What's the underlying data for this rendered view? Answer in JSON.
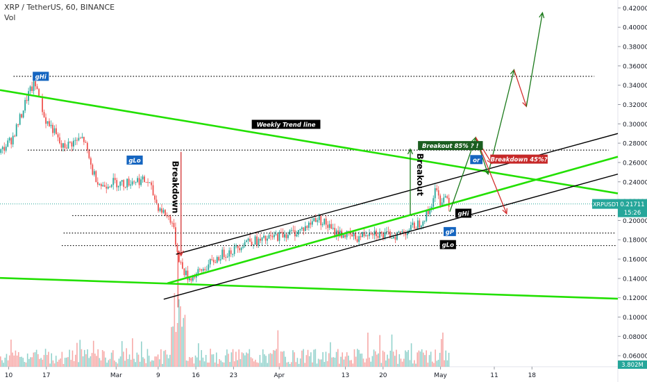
{
  "header": {
    "title": "XRP / TetherUS, 60, BINANCE",
    "volume_label": "Vol"
  },
  "chart_data": {
    "type": "candlestick",
    "symbol": "XRPUSDT",
    "ylim": [
      0.0486,
      0.4282
    ],
    "xlim": [
      0,
      1
    ],
    "x_tick_labels": [
      {
        "label": "10",
        "t": 0.014
      },
      {
        "label": "17",
        "t": 0.075
      },
      {
        "label": "Mar",
        "t": 0.188
      },
      {
        "label": "9",
        "t": 0.256
      },
      {
        "label": "16",
        "t": 0.317
      },
      {
        "label": "23",
        "t": 0.378
      },
      {
        "label": "Apr",
        "t": 0.452
      },
      {
        "label": "13",
        "t": 0.559
      },
      {
        "label": "20",
        "t": 0.62
      },
      {
        "label": "May",
        "t": 0.713
      },
      {
        "label": "11",
        "t": 0.8
      },
      {
        "label": "18",
        "t": 0.861
      }
    ],
    "y_ticks": [
      0.06,
      0.08,
      0.1,
      0.12,
      0.14,
      0.16,
      0.18,
      0.2,
      0.22,
      0.24,
      0.26,
      0.28,
      0.3,
      0.32,
      0.34,
      0.36,
      0.38,
      0.4,
      0.42
    ],
    "y_tick_labels": [
      "0.06000",
      "0.08000",
      "0.10000",
      "0.12000",
      "0.14000",
      "0.16000",
      "0.18000",
      "0.20000",
      "0.22000",
      "0.24000",
      "0.26000",
      "0.28000",
      "0.30000",
      "0.32000",
      "0.34000",
      "0.36000",
      "0.38000",
      "0.40000",
      "0.42000"
    ],
    "price_path": [
      [
        0.0,
        0.27
      ],
      [
        0.02,
        0.285
      ],
      [
        0.035,
        0.31
      ],
      [
        0.045,
        0.33
      ],
      [
        0.055,
        0.34
      ],
      [
        0.062,
        0.335
      ],
      [
        0.072,
        0.305
      ],
      [
        0.085,
        0.295
      ],
      [
        0.1,
        0.275
      ],
      [
        0.115,
        0.28
      ],
      [
        0.135,
        0.285
      ],
      [
        0.15,
        0.25
      ],
      [
        0.165,
        0.235
      ],
      [
        0.18,
        0.24
      ],
      [
        0.2,
        0.238
      ],
      [
        0.22,
        0.242
      ],
      [
        0.24,
        0.24
      ],
      [
        0.255,
        0.215
      ],
      [
        0.27,
        0.205
      ],
      [
        0.278,
        0.2
      ],
      [
        0.288,
        0.165
      ],
      [
        0.295,
        0.15
      ],
      [
        0.305,
        0.14
      ],
      [
        0.32,
        0.145
      ],
      [
        0.34,
        0.155
      ],
      [
        0.36,
        0.165
      ],
      [
        0.38,
        0.17
      ],
      [
        0.4,
        0.18
      ],
      [
        0.42,
        0.178
      ],
      [
        0.44,
        0.182
      ],
      [
        0.46,
        0.186
      ],
      [
        0.48,
        0.188
      ],
      [
        0.5,
        0.195
      ],
      [
        0.51,
        0.203
      ],
      [
        0.525,
        0.198
      ],
      [
        0.54,
        0.188
      ],
      [
        0.56,
        0.185
      ],
      [
        0.58,
        0.182
      ],
      [
        0.6,
        0.19
      ],
      [
        0.62,
        0.184
      ],
      [
        0.64,
        0.185
      ],
      [
        0.66,
        0.19
      ],
      [
        0.68,
        0.198
      ],
      [
        0.695,
        0.21
      ],
      [
        0.705,
        0.232
      ],
      [
        0.712,
        0.22
      ],
      [
        0.722,
        0.226
      ],
      [
        0.728,
        0.217
      ]
    ],
    "candle_count": 260,
    "volume_max": 3.802,
    "last_price": {
      "label": "XRPUSDT",
      "value": "0.21711",
      "countdown": "15:26",
      "price": 0.21711
    },
    "volume_badge": "3.802M",
    "colors": {
      "up": "#26a69a",
      "down": "#ef5350",
      "trend": "#22e000",
      "channel": "#000000"
    },
    "horizontal_levels": [
      {
        "price": 0.3492,
        "t0": 0.022,
        "t1": 0.962
      },
      {
        "price": 0.2728,
        "t0": 0.045,
        "t1": 0.985
      },
      {
        "price": 0.205,
        "t0": 0.117,
        "t1": 0.997
      },
      {
        "price": 0.187,
        "t0": 0.103,
        "t1": 0.997
      },
      {
        "price": 0.174,
        "t0": 0.1,
        "t1": 0.997
      }
    ],
    "trend_lines": [
      {
        "name": "weekly_upper",
        "t0": 0.0,
        "p0": 0.335,
        "t1": 1.0,
        "p1": 0.228
      },
      {
        "name": "lower_green",
        "t0": 0.0,
        "p0": 0.1405,
        "t1": 1.0,
        "p1": 0.119
      },
      {
        "name": "channel_mid",
        "t0": 0.271,
        "p0": 0.135,
        "t1": 1.0,
        "p1": 0.266
      },
      {
        "name": "channel_top",
        "t0": 0.285,
        "p0": 0.165,
        "t1": 1.0,
        "p1": 0.29
      },
      {
        "name": "channel_bottom",
        "t0": 0.265,
        "p0": 0.1185,
        "t1": 1.0,
        "p1": 0.248
      }
    ],
    "arrows": [
      {
        "color": "#d32f2f",
        "t0": 0.293,
        "p0": 0.271,
        "t1": 0.293,
        "p1": 0.1635
      },
      {
        "color": "#1b7a1b",
        "t0": 0.664,
        "p0": 0.206,
        "t1": 0.664,
        "p1": 0.2738
      },
      {
        "color": "#1b7a1b",
        "t0": 0.728,
        "p0": 0.209,
        "t1": 0.77,
        "p1": 0.286
      },
      {
        "color": "#1b7a1b",
        "t0": 0.77,
        "p0": 0.286,
        "t1": 0.79,
        "p1": 0.248
      },
      {
        "color": "#1b7a1b",
        "t0": 0.79,
        "p0": 0.248,
        "t1": 0.832,
        "p1": 0.356
      },
      {
        "color": "#d32f2f",
        "t0": 0.832,
        "p0": 0.356,
        "t1": 0.852,
        "p1": 0.318
      },
      {
        "color": "#1b7a1b",
        "t0": 0.852,
        "p0": 0.318,
        "t1": 0.878,
        "p1": 0.415
      },
      {
        "color": "#d32f2f",
        "t0": 0.77,
        "p0": 0.286,
        "t1": 0.796,
        "p1": 0.259
      },
      {
        "color": "#d32f2f",
        "t0": 0.77,
        "p0": 0.286,
        "t1": 0.82,
        "p1": 0.207
      }
    ],
    "annotations": [
      {
        "text": "gHi",
        "t": 0.066,
        "price": 0.3492,
        "style": "blue"
      },
      {
        "text": "gLo",
        "t": 0.218,
        "price": 0.2625,
        "style": "blue"
      },
      {
        "text": "Weekly Trend line",
        "t": 0.463,
        "price": 0.2995,
        "style": "black"
      },
      {
        "text": "Breakout 85% ? !",
        "t": 0.729,
        "price": 0.2775,
        "style": "green"
      },
      {
        "text": "or",
        "t": 0.771,
        "price": 0.263,
        "style": "blue"
      },
      {
        "text": "Breakdown 45%?",
        "t": 0.84,
        "price": 0.2635,
        "style": "red"
      },
      {
        "text": "gHi",
        "t": 0.75,
        "price": 0.2075,
        "style": "black"
      },
      {
        "text": "gP",
        "t": 0.728,
        "price": 0.1885,
        "style": "blue"
      },
      {
        "text": "gLo",
        "t": 0.725,
        "price": 0.175,
        "style": "black"
      }
    ],
    "vertical_labels": [
      {
        "text": "Breakdown",
        "t": 0.279,
        "price": 0.2345
      },
      {
        "text": "Breakout",
        "t": 0.675,
        "price": 0.2475
      }
    ]
  }
}
